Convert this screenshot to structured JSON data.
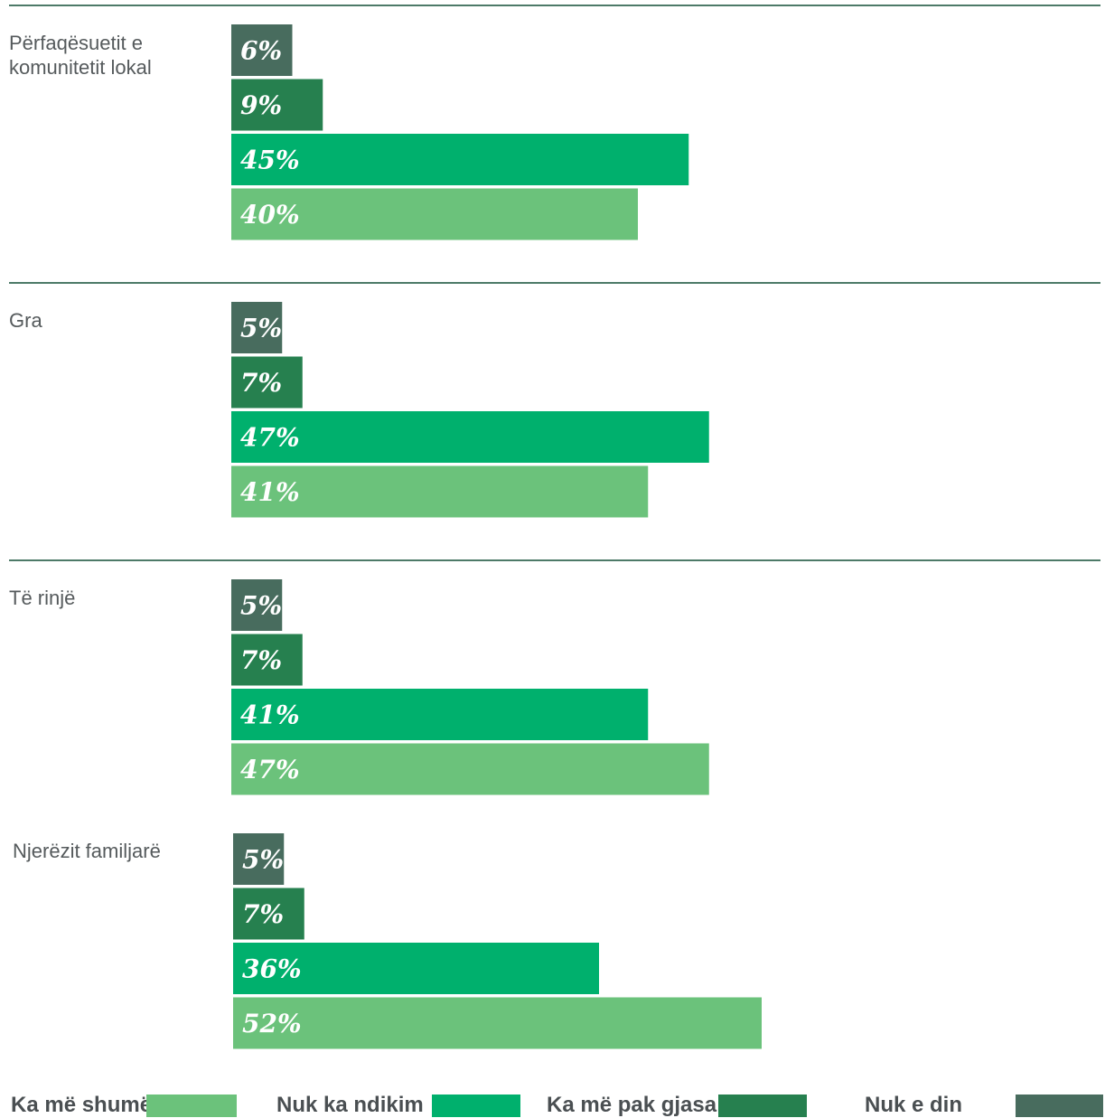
{
  "chart_data": {
    "type": "bar",
    "orientation": "horizontal",
    "groups": [
      {
        "label": "Përfaqësuetit e komunitetit lokal",
        "label_lines": [
          "Përfaqësuetit e",
          "komunitetit lokal"
        ],
        "values": [
          6,
          9,
          45,
          40
        ],
        "labels": [
          "6%",
          "9%",
          "45%",
          "40%"
        ]
      },
      {
        "label": "Gra",
        "label_lines": [
          "Gra"
        ],
        "values": [
          5,
          7,
          47,
          41
        ],
        "labels": [
          "5%",
          "7%",
          "47%",
          "41%"
        ]
      },
      {
        "label": "Të rinjë",
        "label_lines": [
          "Të rinjë"
        ],
        "values": [
          5,
          7,
          41,
          47
        ],
        "labels": [
          "5%",
          "7%",
          "41%",
          "47%"
        ]
      },
      {
        "label": "Njerëzit familjarë",
        "label_lines": [
          "Njerëzit familjarë"
        ],
        "values": [
          5,
          7,
          36,
          52
        ],
        "labels": [
          "5%",
          "7%",
          "36%",
          "52%"
        ]
      }
    ],
    "series_order": [
      "Nuk e din",
      "Ka më pak gjasa",
      "Nuk ka ndikim",
      "Ka më shumë"
    ],
    "series_colors": [
      "#486c5e",
      "#26804f",
      "#00b06d",
      "#6bc27b"
    ],
    "legend": [
      {
        "name": "Ka më shumë",
        "color": "#6bc27b"
      },
      {
        "name": "Nuk ka ndikim",
        "color": "#00b06d"
      },
      {
        "name": "Ka më pak gjasa",
        "color": "#26804f"
      },
      {
        "name": "Nuk e din",
        "color": "#486c5e"
      }
    ],
    "legend_position": "bottom",
    "xlim": [
      0,
      100
    ],
    "grid": false,
    "separator_color": "#4d7a68"
  }
}
